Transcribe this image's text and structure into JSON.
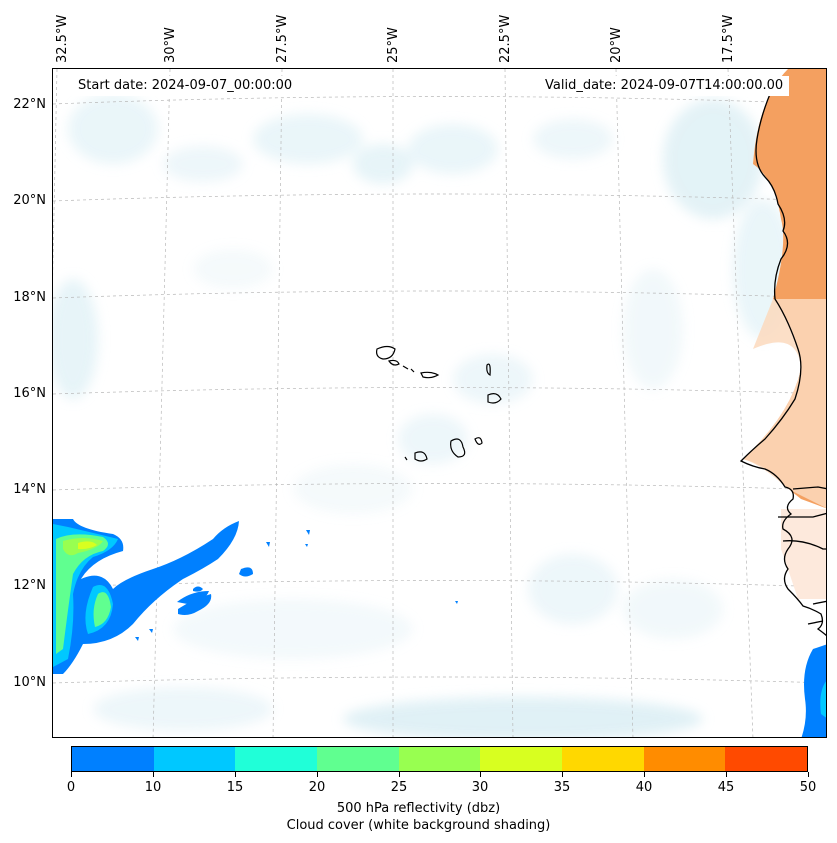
{
  "map": {
    "start_date": "Start date: 2024-09-07_00:00:00",
    "valid_date": "Valid_date: 2024-09-07T14:00:00.00",
    "lon_labels": [
      "32.5°W",
      "30°W",
      "27.5°W",
      "25°W",
      "22.5°W",
      "20°W",
      "17.5°W"
    ],
    "lat_labels": [
      "22°N",
      "20°N",
      "18°N",
      "16°N",
      "14°N",
      "12°N",
      "10°N"
    ],
    "colors": {
      "cloud": "#d6ecf3",
      "land_warm": "#f4a060",
      "land_light": "#fbd9bd",
      "coastline": "#000000"
    }
  },
  "colorbar": {
    "ticks": [
      "0",
      "10",
      "15",
      "20",
      "25",
      "30",
      "35",
      "40",
      "45",
      "50"
    ],
    "colors": [
      "#0080ff",
      "#00c8ff",
      "#20ffd8",
      "#60ff90",
      "#98ff50",
      "#d8ff20",
      "#ffd800",
      "#ff8c00",
      "#ff4a00"
    ],
    "label_line1": "500 hPa reflectivity (dbz)",
    "label_line2": "Cloud cover (white background shading)"
  }
}
